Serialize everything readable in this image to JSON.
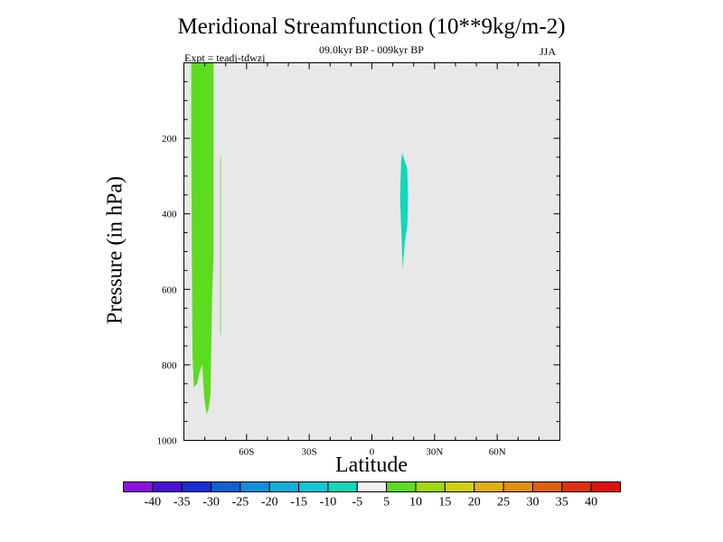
{
  "chart_data": {
    "type": "heatmap",
    "title": "Meridional Streamfunction (10**9kg/m-2)",
    "subtitle": "09.0kyr BP - 009kyr BP",
    "experiment": "Expt = teadj-tdwzj",
    "season": "JJA",
    "xlabel": "Latitude",
    "ylabel": "Pressure (in hPa)",
    "xlim": [
      -90,
      90
    ],
    "ylim": [
      1000,
      0
    ],
    "x_ticks": [
      {
        "value": -60,
        "label": "60S"
      },
      {
        "value": -30,
        "label": "30S"
      },
      {
        "value": 0,
        "label": "0"
      },
      {
        "value": 30,
        "label": "30N"
      },
      {
        "value": 60,
        "label": "60N"
      }
    ],
    "y_ticks": [
      {
        "value": 200,
        "label": "200"
      },
      {
        "value": 400,
        "label": "400"
      },
      {
        "value": 600,
        "label": "600"
      },
      {
        "value": 800,
        "label": "800"
      },
      {
        "value": 1000,
        "label": "1000"
      }
    ],
    "background_color": "#e8e8e8",
    "colorbar": {
      "labels": [
        "-40",
        "-35",
        "-30",
        "-25",
        "-20",
        "-15",
        "-10",
        "-5",
        "5",
        "10",
        "15",
        "20",
        "25",
        "30",
        "35",
        "40"
      ],
      "colors": [
        "#8c10e0",
        "#4a10d8",
        "#1a2ed8",
        "#1060d8",
        "#1090d8",
        "#10b0d8",
        "#10c8d8",
        "#10d8b8",
        "#f0f0f0",
        "#5cdc1e",
        "#a0d810",
        "#d0d010",
        "#e0b010",
        "#e09010",
        "#e06010",
        "#e03010",
        "#e01010"
      ]
    },
    "regions": [
      {
        "name": "positive-5-10-southern-hemisphere",
        "level": "5 to 10",
        "color": "#5cdc1e",
        "polygon": [
          [
            -86.5,
            0
          ],
          [
            -75.8,
            0
          ],
          [
            -75.8,
            510
          ],
          [
            -76.5,
            620
          ],
          [
            -77.3,
            880
          ],
          [
            -78.3,
            920
          ],
          [
            -79.2,
            930
          ],
          [
            -80.2,
            890
          ],
          [
            -80.7,
            850
          ],
          [
            -81.2,
            800
          ],
          [
            -82.5,
            820
          ],
          [
            -83.7,
            850
          ],
          [
            -85.3,
            860
          ],
          [
            -85.9,
            770
          ],
          [
            -86.2,
            510
          ],
          [
            -86.5,
            200
          ]
        ]
      },
      {
        "name": "positive-5-10-thin-strip",
        "level": "5 to 10",
        "color": "#5cdc1e",
        "polygon": [
          [
            -72.6,
            250
          ],
          [
            -72.3,
            250
          ],
          [
            -72.3,
            720
          ],
          [
            -72.6,
            720
          ]
        ]
      },
      {
        "name": "negative-5-10-tropics",
        "level": "-10 to -5",
        "color": "#10d8b8",
        "polygon": [
          [
            14.5,
            240
          ],
          [
            15.7,
            260
          ],
          [
            16.9,
            280
          ],
          [
            17.3,
            350
          ],
          [
            17.0,
            430
          ],
          [
            15.9,
            470
          ],
          [
            15.1,
            520
          ],
          [
            14.7,
            550
          ],
          [
            14.3,
            470
          ],
          [
            13.9,
            420
          ],
          [
            13.5,
            360
          ],
          [
            13.7,
            310
          ],
          [
            14.0,
            260
          ]
        ]
      }
    ]
  }
}
